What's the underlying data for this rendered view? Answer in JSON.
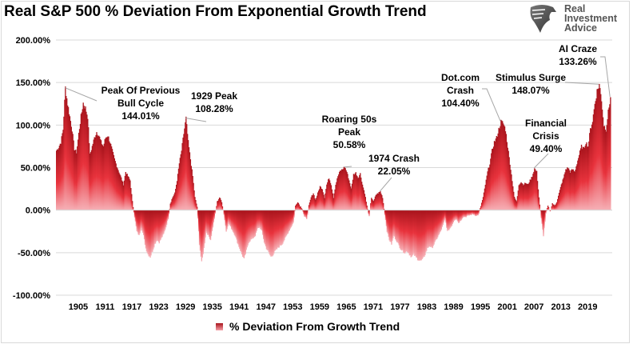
{
  "chart_data": {
    "type": "area",
    "title": "Real S&P 500 % Deviation From Exponential Growth Trend",
    "xlabel": "",
    "ylabel": "",
    "ylim": [
      -1.0,
      2.0
    ],
    "xlim": [
      1900,
      2024.5
    ],
    "grid": true,
    "legend_position": "bottom",
    "y_ticks": [
      "200.00%",
      "150.00%",
      "100.00%",
      "50.00%",
      "0.00%",
      "-50.00%",
      "-100.00%"
    ],
    "y_tick_values": [
      2.0,
      1.5,
      1.0,
      0.5,
      0.0,
      -0.5,
      -1.0
    ],
    "x_ticks": [
      "1905",
      "1911",
      "1917",
      "1923",
      "1929",
      "1935",
      "1941",
      "1947",
      "1953",
      "1959",
      "1965",
      "1971",
      "1977",
      "1983",
      "1989",
      "1995",
      "2001",
      "2007",
      "2013",
      "2019"
    ],
    "series": [
      {
        "name": "% Deviation From Growth Trend",
        "color_top": "#a8141c",
        "color_mid": "#e8323c",
        "color_base": "#f6a8b0",
        "points": [
          [
            1900.0,
            0.7
          ],
          [
            1900.5,
            0.74
          ],
          [
            1901.0,
            0.8
          ],
          [
            1901.5,
            0.95
          ],
          [
            1902.0,
            1.44
          ],
          [
            1902.5,
            1.25
          ],
          [
            1903.0,
            1.1
          ],
          [
            1903.5,
            0.95
          ],
          [
            1904.0,
            0.72
          ],
          [
            1904.5,
            0.68
          ],
          [
            1905.0,
            0.9
          ],
          [
            1905.5,
            1.1
          ],
          [
            1906.0,
            1.26
          ],
          [
            1906.5,
            1.2
          ],
          [
            1907.0,
            1.1
          ],
          [
            1907.5,
            0.65
          ],
          [
            1908.0,
            0.75
          ],
          [
            1908.5,
            0.85
          ],
          [
            1909.0,
            0.92
          ],
          [
            1909.5,
            0.88
          ],
          [
            1910.0,
            0.8
          ],
          [
            1910.5,
            0.75
          ],
          [
            1911.0,
            0.85
          ],
          [
            1911.5,
            0.88
          ],
          [
            1912.0,
            0.8
          ],
          [
            1912.5,
            0.7
          ],
          [
            1913.0,
            0.6
          ],
          [
            1913.5,
            0.52
          ],
          [
            1914.0,
            0.45
          ],
          [
            1914.5,
            0.38
          ],
          [
            1915.0,
            0.3
          ],
          [
            1915.5,
            0.45
          ],
          [
            1916.0,
            0.4
          ],
          [
            1916.5,
            0.35
          ],
          [
            1917.0,
            0.1
          ],
          [
            1917.5,
            -0.08
          ],
          [
            1918.0,
            -0.25
          ],
          [
            1918.5,
            -0.3
          ],
          [
            1919.0,
            -0.2
          ],
          [
            1919.5,
            -0.3
          ],
          [
            1920.0,
            -0.45
          ],
          [
            1920.5,
            -0.52
          ],
          [
            1921.0,
            -0.55
          ],
          [
            1921.5,
            -0.48
          ],
          [
            1922.0,
            -0.4
          ],
          [
            1922.5,
            -0.35
          ],
          [
            1923.0,
            -0.38
          ],
          [
            1923.5,
            -0.33
          ],
          [
            1924.0,
            -0.28
          ],
          [
            1924.5,
            -0.2
          ],
          [
            1925.0,
            -0.1
          ],
          [
            1925.5,
            0.08
          ],
          [
            1926.0,
            0.15
          ],
          [
            1926.5,
            0.2
          ],
          [
            1927.0,
            0.35
          ],
          [
            1927.5,
            0.55
          ],
          [
            1928.0,
            0.7
          ],
          [
            1928.5,
            0.9
          ],
          [
            1929.0,
            1.08
          ],
          [
            1929.5,
            0.8
          ],
          [
            1930.0,
            0.6
          ],
          [
            1930.5,
            0.4
          ],
          [
            1931.0,
            0.15
          ],
          [
            1931.5,
            0.04
          ],
          [
            1932.0,
            -0.4
          ],
          [
            1932.5,
            -0.62
          ],
          [
            1933.0,
            -0.45
          ],
          [
            1933.5,
            -0.25
          ],
          [
            1934.0,
            -0.3
          ],
          [
            1934.5,
            -0.35
          ],
          [
            1935.0,
            -0.2
          ],
          [
            1935.5,
            -0.05
          ],
          [
            1936.0,
            0.1
          ],
          [
            1936.5,
            0.15
          ],
          [
            1937.0,
            0.1
          ],
          [
            1937.5,
            -0.05
          ],
          [
            1938.0,
            -0.25
          ],
          [
            1938.5,
            -0.15
          ],
          [
            1939.0,
            -0.2
          ],
          [
            1939.5,
            -0.25
          ],
          [
            1940.0,
            -0.3
          ],
          [
            1940.5,
            -0.38
          ],
          [
            1941.0,
            -0.45
          ],
          [
            1941.5,
            -0.52
          ],
          [
            1942.0,
            -0.58
          ],
          [
            1942.5,
            -0.48
          ],
          [
            1943.0,
            -0.38
          ],
          [
            1943.5,
            -0.35
          ],
          [
            1944.0,
            -0.33
          ],
          [
            1944.5,
            -0.3
          ],
          [
            1945.0,
            -0.22
          ],
          [
            1945.5,
            -0.2
          ],
          [
            1946.0,
            -0.25
          ],
          [
            1946.5,
            -0.38
          ],
          [
            1947.0,
            -0.45
          ],
          [
            1947.5,
            -0.5
          ],
          [
            1948.0,
            -0.55
          ],
          [
            1948.5,
            -0.52
          ],
          [
            1949.0,
            -0.48
          ],
          [
            1949.5,
            -0.45
          ],
          [
            1950.0,
            -0.42
          ],
          [
            1950.5,
            -0.4
          ],
          [
            1951.0,
            -0.35
          ],
          [
            1951.5,
            -0.3
          ],
          [
            1952.0,
            -0.25
          ],
          [
            1952.5,
            -0.2
          ],
          [
            1953.0,
            -0.15
          ],
          [
            1953.5,
            0.05
          ],
          [
            1954.0,
            0.1
          ],
          [
            1954.5,
            0.05
          ],
          [
            1955.0,
            0.02
          ],
          [
            1955.5,
            -0.08
          ],
          [
            1956.0,
            -0.1
          ],
          [
            1956.5,
            0.05
          ],
          [
            1957.0,
            0.15
          ],
          [
            1957.5,
            0.2
          ],
          [
            1958.0,
            0.12
          ],
          [
            1958.5,
            0.2
          ],
          [
            1959.0,
            0.28
          ],
          [
            1959.5,
            0.25
          ],
          [
            1960.0,
            0.15
          ],
          [
            1960.5,
            0.3
          ],
          [
            1961.0,
            0.38
          ],
          [
            1961.5,
            0.3
          ],
          [
            1962.0,
            0.15
          ],
          [
            1962.5,
            0.3
          ],
          [
            1963.0,
            0.4
          ],
          [
            1963.5,
            0.46
          ],
          [
            1964.0,
            0.48
          ],
          [
            1964.5,
            0.51
          ],
          [
            1965.0,
            0.45
          ],
          [
            1965.5,
            0.35
          ],
          [
            1966.0,
            0.25
          ],
          [
            1966.5,
            0.42
          ],
          [
            1967.0,
            0.44
          ],
          [
            1967.5,
            0.38
          ],
          [
            1968.0,
            0.43
          ],
          [
            1968.5,
            0.3
          ],
          [
            1969.0,
            0.2
          ],
          [
            1969.5,
            0.05
          ],
          [
            1970.0,
            -0.08
          ],
          [
            1970.5,
            0.15
          ],
          [
            1971.0,
            0.1
          ],
          [
            1971.5,
            0.18
          ],
          [
            1972.0,
            0.2
          ],
          [
            1972.5,
            0.22
          ],
          [
            1973.0,
            0.15
          ],
          [
            1973.5,
            -0.05
          ],
          [
            1974.0,
            -0.25
          ],
          [
            1974.5,
            -0.35
          ],
          [
            1975.0,
            -0.4
          ],
          [
            1975.5,
            -0.3
          ],
          [
            1976.0,
            -0.35
          ],
          [
            1976.5,
            -0.4
          ],
          [
            1977.0,
            -0.45
          ],
          [
            1977.5,
            -0.48
          ],
          [
            1978.0,
            -0.5
          ],
          [
            1978.5,
            -0.48
          ],
          [
            1979.0,
            -0.52
          ],
          [
            1979.5,
            -0.55
          ],
          [
            1980.0,
            -0.52
          ],
          [
            1980.5,
            -0.56
          ],
          [
            1981.0,
            -0.58
          ],
          [
            1981.5,
            -0.6
          ],
          [
            1982.0,
            -0.58
          ],
          [
            1982.5,
            -0.52
          ],
          [
            1983.0,
            -0.45
          ],
          [
            1983.5,
            -0.42
          ],
          [
            1984.0,
            -0.45
          ],
          [
            1984.5,
            -0.4
          ],
          [
            1985.0,
            -0.35
          ],
          [
            1985.5,
            -0.3
          ],
          [
            1986.0,
            -0.25
          ],
          [
            1986.5,
            -0.18
          ],
          [
            1987.0,
            -0.1
          ],
          [
            1987.5,
            -0.25
          ],
          [
            1988.0,
            -0.22
          ],
          [
            1988.5,
            -0.18
          ],
          [
            1989.0,
            -0.12
          ],
          [
            1989.5,
            -0.1
          ],
          [
            1990.0,
            -0.15
          ],
          [
            1990.5,
            -0.12
          ],
          [
            1991.0,
            -0.08
          ],
          [
            1991.5,
            -0.08
          ],
          [
            1992.0,
            -0.07
          ],
          [
            1992.5,
            -0.06
          ],
          [
            1993.0,
            -0.05
          ],
          [
            1993.5,
            -0.05
          ],
          [
            1994.0,
            -0.07
          ],
          [
            1994.5,
            -0.05
          ],
          [
            1995.0,
            0.05
          ],
          [
            1995.5,
            0.15
          ],
          [
            1996.0,
            0.3
          ],
          [
            1996.5,
            0.45
          ],
          [
            1997.0,
            0.55
          ],
          [
            1997.5,
            0.7
          ],
          [
            1998.0,
            0.8
          ],
          [
            1998.5,
            0.85
          ],
          [
            1999.0,
            0.95
          ],
          [
            1999.5,
            1.04
          ],
          [
            2000.0,
            1.02
          ],
          [
            2000.5,
            0.95
          ],
          [
            2001.0,
            0.75
          ],
          [
            2001.5,
            0.55
          ],
          [
            2002.0,
            0.35
          ],
          [
            2002.5,
            0.15
          ],
          [
            2003.0,
            0.1
          ],
          [
            2003.5,
            0.3
          ],
          [
            2004.0,
            0.33
          ],
          [
            2004.5,
            0.3
          ],
          [
            2005.0,
            0.32
          ],
          [
            2005.5,
            0.3
          ],
          [
            2006.0,
            0.35
          ],
          [
            2006.5,
            0.4
          ],
          [
            2007.0,
            0.49
          ],
          [
            2007.5,
            0.45
          ],
          [
            2008.0,
            0.15
          ],
          [
            2008.5,
            -0.1
          ],
          [
            2009.0,
            -0.3
          ],
          [
            2009.5,
            -0.05
          ],
          [
            2010.0,
            0.05
          ],
          [
            2010.5,
            -0.02
          ],
          [
            2011.0,
            0.08
          ],
          [
            2011.5,
            0.05
          ],
          [
            2012.0,
            0.1
          ],
          [
            2012.5,
            0.2
          ],
          [
            2013.0,
            0.3
          ],
          [
            2013.5,
            0.38
          ],
          [
            2014.0,
            0.48
          ],
          [
            2014.5,
            0.5
          ],
          [
            2015.0,
            0.45
          ],
          [
            2015.5,
            0.48
          ],
          [
            2016.0,
            0.45
          ],
          [
            2016.5,
            0.55
          ],
          [
            2017.0,
            0.65
          ],
          [
            2017.5,
            0.75
          ],
          [
            2018.0,
            0.72
          ],
          [
            2018.5,
            0.8
          ],
          [
            2019.0,
            0.75
          ],
          [
            2019.5,
            0.95
          ],
          [
            2020.0,
            1.05
          ],
          [
            2020.5,
            1.25
          ],
          [
            2021.0,
            1.4
          ],
          [
            2021.5,
            1.48
          ],
          [
            2022.0,
            1.3
          ],
          [
            2022.5,
            1.0
          ],
          [
            2023.0,
            0.95
          ],
          [
            2023.5,
            1.15
          ],
          [
            2024.0,
            1.33
          ]
        ]
      }
    ],
    "annotations": [
      {
        "lines": [
          "Peak Of Previous",
          "Bull Cycle",
          "144.01%"
        ],
        "year": 1902.0,
        "value": 1.4401
      },
      {
        "lines": [
          "1929 Peak",
          "108.28%"
        ],
        "year": 1929.0,
        "value": 1.0828
      },
      {
        "lines": [
          "Roaring 50s",
          "Peak",
          "50.58%"
        ],
        "year": 1964.5,
        "value": 0.5058
      },
      {
        "lines": [
          "1974 Crash",
          "22.05%"
        ],
        "year": 1972.5,
        "value": 0.2205
      },
      {
        "lines": [
          "Dot.com",
          "Crash",
          "104.40%"
        ],
        "year": 1999.5,
        "value": 1.044
      },
      {
        "lines": [
          "Financial",
          "Crisis",
          "49.40%"
        ],
        "year": 2007.0,
        "value": 0.494
      },
      {
        "lines": [
          "Stimulus Surge",
          "148.07%"
        ],
        "year": 2021.5,
        "value": 1.4807
      },
      {
        "lines": [
          "AI Craze",
          "133.26%"
        ],
        "year": 2024.0,
        "value": 1.3326
      }
    ]
  },
  "header": {
    "title": "Real S&P 500 % Deviation From Exponential Growth Trend",
    "logo_text_1": "Real",
    "logo_text_2": "Investment",
    "logo_text_3": "Advice"
  },
  "legend": {
    "label": "% Deviation From Growth Trend"
  }
}
